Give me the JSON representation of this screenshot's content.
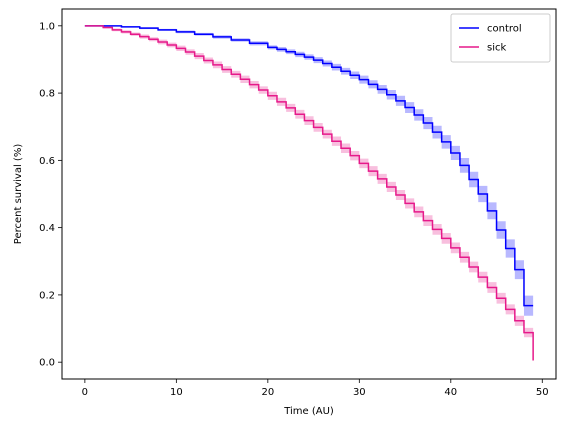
{
  "chart_data": {
    "type": "line",
    "step": true,
    "xlabel": "Time (AU)",
    "ylabel": "Percent survival (%)",
    "xlim": [
      -2.5,
      51.5
    ],
    "ylim": [
      -0.05,
      1.05
    ],
    "xticks": [
      0,
      10,
      20,
      30,
      40,
      50
    ],
    "yticks": [
      0.0,
      0.2,
      0.4,
      0.6,
      0.8,
      1.0
    ],
    "xtick_labels": [
      "0",
      "10",
      "20",
      "30",
      "40",
      "50"
    ],
    "ytick_labels": [
      "0.0",
      "0.2",
      "0.4",
      "0.6",
      "0.8",
      "1.0"
    ],
    "legend_position": "top-right",
    "grid": false,
    "series": [
      {
        "name": "control",
        "color": "#0000ff",
        "band_color": "#0000ff",
        "x": [
          0,
          4,
          6,
          8,
          10,
          12,
          14,
          16,
          18,
          20,
          21,
          22,
          23,
          24,
          25,
          26,
          27,
          28,
          29,
          30,
          31,
          32,
          33,
          34,
          35,
          36,
          37,
          38,
          39,
          40,
          41,
          42,
          43,
          44,
          45,
          46,
          47,
          48,
          49
        ],
        "y": [
          1.0,
          0.997,
          0.993,
          0.988,
          0.982,
          0.975,
          0.967,
          0.958,
          0.948,
          0.936,
          0.93,
          0.923,
          0.915,
          0.907,
          0.898,
          0.888,
          0.877,
          0.865,
          0.853,
          0.84,
          0.826,
          0.811,
          0.795,
          0.777,
          0.757,
          0.735,
          0.711,
          0.684,
          0.655,
          0.622,
          0.585,
          0.543,
          0.5,
          0.45,
          0.393,
          0.338,
          0.275,
          0.168,
          0.168
        ],
        "band": [
          0.0,
          0.002,
          0.003,
          0.003,
          0.004,
          0.004,
          0.005,
          0.005,
          0.006,
          0.006,
          0.007,
          0.007,
          0.008,
          0.008,
          0.009,
          0.009,
          0.01,
          0.01,
          0.011,
          0.012,
          0.012,
          0.013,
          0.014,
          0.015,
          0.016,
          0.017,
          0.018,
          0.019,
          0.02,
          0.021,
          0.022,
          0.023,
          0.024,
          0.025,
          0.026,
          0.027,
          0.028,
          0.03,
          0.03
        ]
      },
      {
        "name": "sick",
        "color": "#e6198a",
        "band_color": "#e6198a",
        "x": [
          0,
          2,
          3,
          4,
          5,
          6,
          7,
          8,
          9,
          10,
          11,
          12,
          13,
          14,
          15,
          16,
          17,
          18,
          19,
          20,
          21,
          22,
          23,
          24,
          25,
          26,
          27,
          28,
          29,
          30,
          31,
          32,
          33,
          34,
          35,
          36,
          37,
          38,
          39,
          40,
          41,
          42,
          43,
          44,
          45,
          46,
          47,
          48,
          49
        ],
        "y": [
          1.0,
          0.995,
          0.988,
          0.982,
          0.975,
          0.968,
          0.96,
          0.952,
          0.943,
          0.933,
          0.922,
          0.91,
          0.897,
          0.884,
          0.87,
          0.856,
          0.841,
          0.825,
          0.809,
          0.792,
          0.774,
          0.756,
          0.737,
          0.718,
          0.698,
          0.678,
          0.657,
          0.636,
          0.614,
          0.591,
          0.568,
          0.545,
          0.521,
          0.497,
          0.472,
          0.447,
          0.421,
          0.395,
          0.368,
          0.34,
          0.312,
          0.283,
          0.253,
          0.222,
          0.19,
          0.157,
          0.123,
          0.088,
          0.052
        ],
        "band": [
          0.0,
          0.003,
          0.004,
          0.005,
          0.005,
          0.006,
          0.006,
          0.007,
          0.007,
          0.008,
          0.008,
          0.009,
          0.009,
          0.01,
          0.01,
          0.01,
          0.011,
          0.011,
          0.011,
          0.012,
          0.012,
          0.012,
          0.013,
          0.013,
          0.013,
          0.013,
          0.014,
          0.014,
          0.014,
          0.014,
          0.015,
          0.015,
          0.015,
          0.015,
          0.015,
          0.016,
          0.016,
          0.016,
          0.016,
          0.016,
          0.016,
          0.016,
          0.016,
          0.016,
          0.016,
          0.015,
          0.015,
          0.014,
          0.013
        ]
      }
    ]
  }
}
